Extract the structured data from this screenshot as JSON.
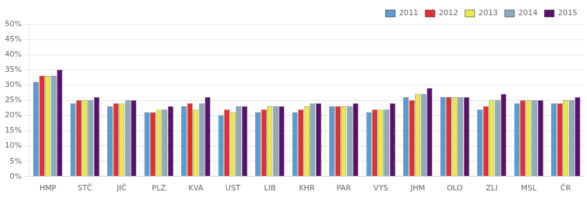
{
  "chart_data": {
    "type": "bar",
    "categories": [
      "HMP",
      "STČ",
      "JIČ",
      "PLZ",
      "KVA",
      "UST",
      "LIB",
      "KHR",
      "PAR",
      "VYS",
      "JHM",
      "OLO",
      "ZLI",
      "MSL",
      "ČR"
    ],
    "series": [
      {
        "name": "2011",
        "color": "#5b9bd5",
        "values": [
          31,
          24,
          23,
          21,
          23,
          20,
          21,
          21,
          23,
          21,
          26,
          26,
          22,
          24,
          24
        ]
      },
      {
        "name": "2012",
        "color": "#e03030",
        "values": [
          33,
          25,
          24,
          21,
          24,
          22,
          22,
          22,
          23,
          22,
          25,
          26,
          23,
          25,
          24
        ]
      },
      {
        "name": "2013",
        "color": "#e8e850",
        "values": [
          33,
          25,
          24,
          22,
          22,
          21,
          23,
          23,
          23,
          22,
          27,
          26,
          25,
          25,
          25
        ]
      },
      {
        "name": "2014",
        "color": "#8eaabc",
        "values": [
          33,
          25,
          25,
          22,
          24,
          23,
          23,
          24,
          23,
          22,
          27,
          26,
          25,
          25,
          25
        ]
      },
      {
        "name": "2015",
        "color": "#5a1070",
        "values": [
          35,
          26,
          25,
          23,
          26,
          23,
          23,
          24,
          24,
          24,
          29,
          26,
          27,
          25,
          26
        ]
      }
    ],
    "ylim": [
      0,
      50
    ],
    "yticks": [
      {
        "value": 0,
        "label": "0%"
      },
      {
        "value": 5,
        "label": "5%"
      },
      {
        "value": 10,
        "label": "10%"
      },
      {
        "value": 15,
        "label": "15%"
      },
      {
        "value": 20,
        "label": "20%"
      },
      {
        "value": 25,
        "label": "25%"
      },
      {
        "value": 30,
        "label": "30%"
      },
      {
        "value": 35,
        "label": "35%"
      },
      {
        "value": 40,
        "label": "40%"
      },
      {
        "value": 45,
        "label": "45%"
      },
      {
        "value": 50,
        "label": "50%"
      }
    ],
    "grid": true,
    "legend": "upper right"
  }
}
